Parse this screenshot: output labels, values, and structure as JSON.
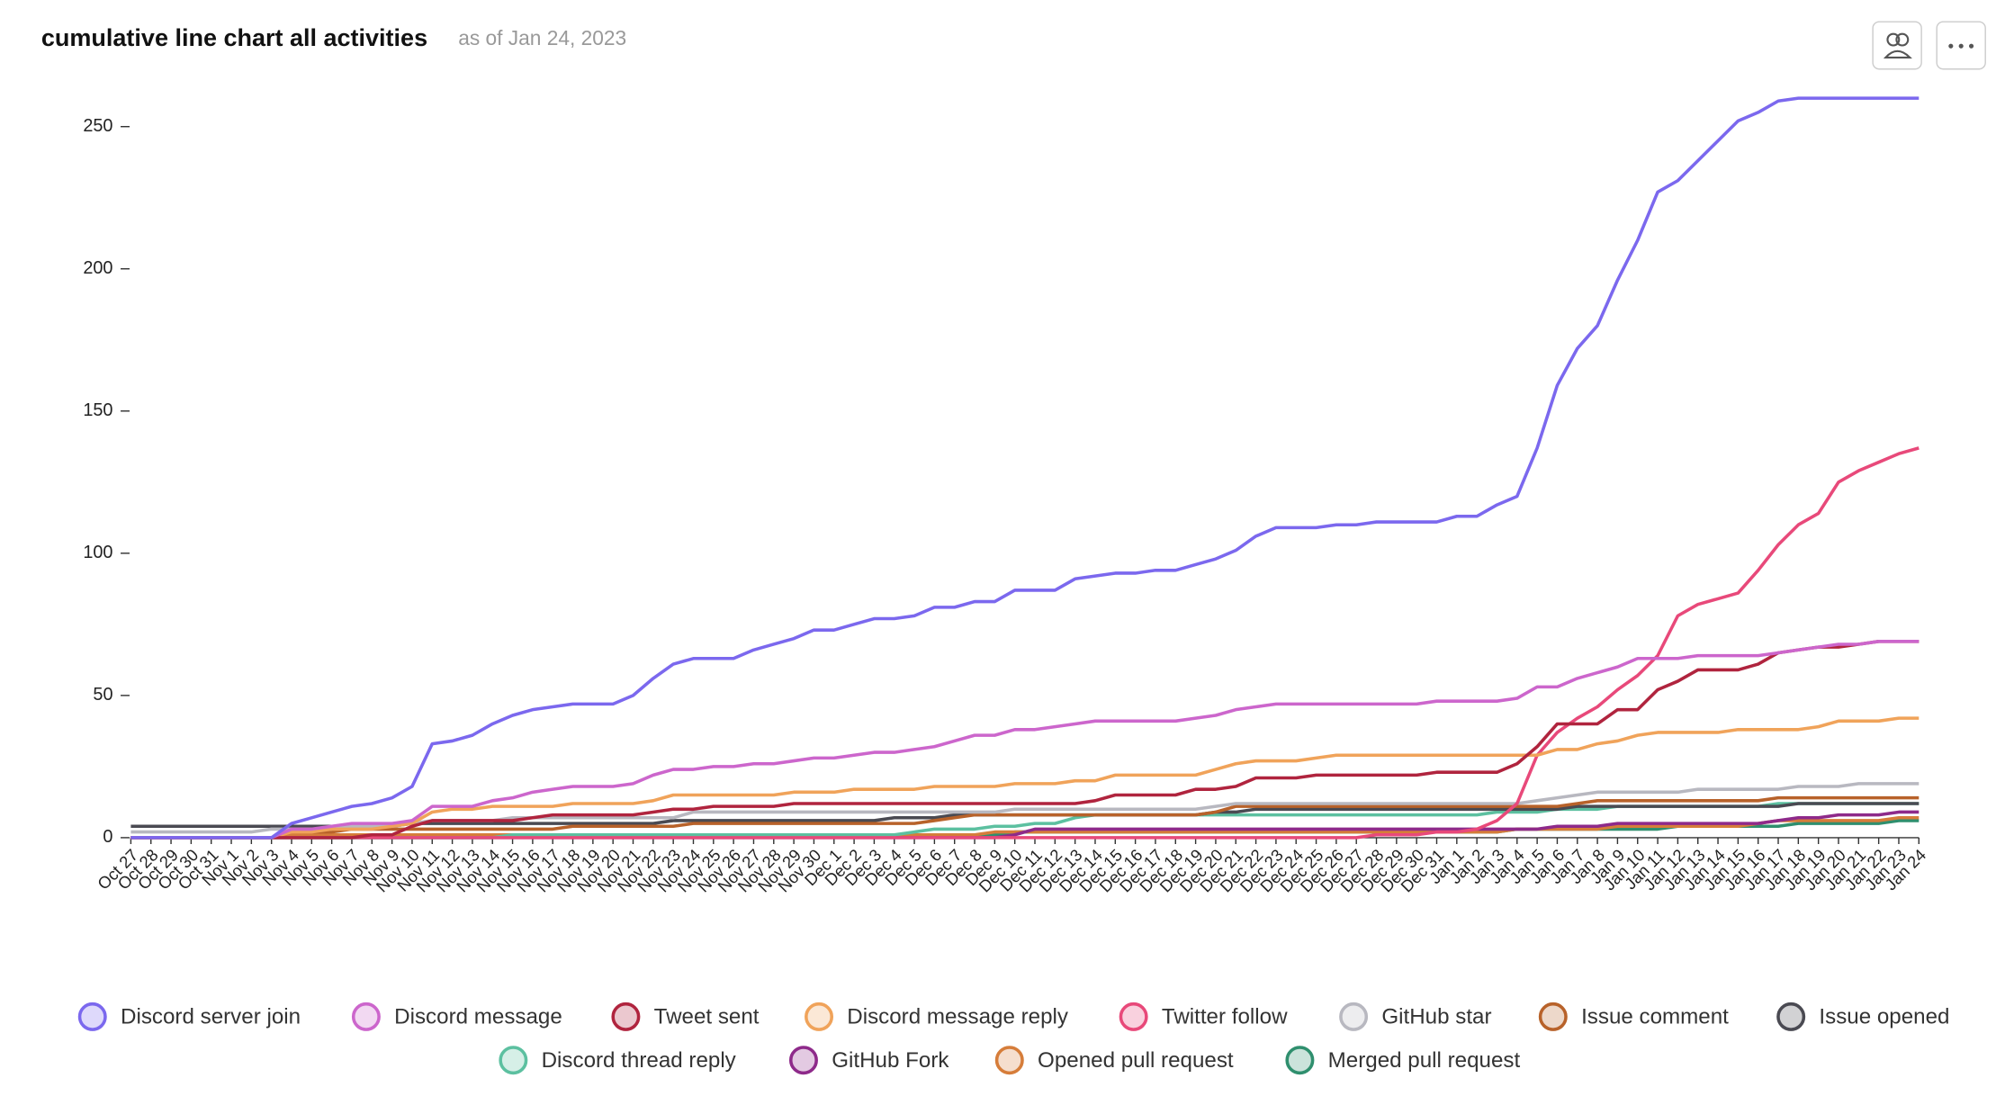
{
  "chart_data": {
    "type": "line",
    "title": "cumulative line chart all activities",
    "subtitle": "as of Jan 24, 2023",
    "categories": [
      "Oct 27",
      "Oct 28",
      "Oct 29",
      "Oct 30",
      "Oct 31",
      "Nov 1",
      "Nov 2",
      "Nov 3",
      "Nov 4",
      "Nov 5",
      "Nov 6",
      "Nov 7",
      "Nov 8",
      "Nov 9",
      "Nov 10",
      "Nov 11",
      "Nov 12",
      "Nov 13",
      "Nov 14",
      "Nov 15",
      "Nov 16",
      "Nov 17",
      "Nov 18",
      "Nov 19",
      "Nov 20",
      "Nov 21",
      "Nov 22",
      "Nov 23",
      "Nov 24",
      "Nov 25",
      "Nov 26",
      "Nov 27",
      "Nov 28",
      "Nov 29",
      "Nov 30",
      "Dec 1",
      "Dec 2",
      "Dec 3",
      "Dec 4",
      "Dec 5",
      "Dec 6",
      "Dec 7",
      "Dec 8",
      "Dec 9",
      "Dec 10",
      "Dec 11",
      "Dec 12",
      "Dec 13",
      "Dec 14",
      "Dec 15",
      "Dec 16",
      "Dec 17",
      "Dec 18",
      "Dec 19",
      "Dec 20",
      "Dec 21",
      "Dec 22",
      "Dec 23",
      "Dec 24",
      "Dec 25",
      "Dec 26",
      "Dec 27",
      "Dec 28",
      "Dec 29",
      "Dec 30",
      "Dec 31",
      "Jan 1",
      "Jan 2",
      "Jan 3",
      "Jan 4",
      "Jan 5",
      "Jan 6",
      "Jan 7",
      "Jan 8",
      "Jan 9",
      "Jan 10",
      "Jan 11",
      "Jan 12",
      "Jan 13",
      "Jan 14",
      "Jan 15",
      "Jan 16",
      "Jan 17",
      "Jan 18",
      "Jan 19",
      "Jan 20",
      "Jan 21",
      "Jan 22",
      "Jan 23",
      "Jan 24"
    ],
    "series": [
      {
        "name": "Discord server join",
        "color": "#7b68ee",
        "values": [
          0,
          0,
          0,
          0,
          0,
          0,
          0,
          0,
          5,
          7,
          9,
          11,
          12,
          14,
          18,
          33,
          34,
          36,
          40,
          43,
          45,
          46,
          47,
          47,
          47,
          50,
          56,
          61,
          63,
          63,
          63,
          66,
          68,
          70,
          73,
          73,
          75,
          77,
          77,
          78,
          81,
          81,
          83,
          83,
          87,
          87,
          87,
          91,
          92,
          93,
          93,
          94,
          94,
          96,
          98,
          101,
          106,
          109,
          109,
          109,
          110,
          110,
          111,
          111,
          111,
          111,
          113,
          113,
          117,
          120,
          137,
          159,
          172,
          180,
          196,
          210,
          227,
          231,
          238,
          245,
          252,
          255,
          259,
          260,
          260,
          260,
          260,
          260,
          260,
          260
        ]
      },
      {
        "name": "Discord message",
        "color": "#cc66cc",
        "values": [
          0,
          0,
          0,
          0,
          0,
          0,
          0,
          0,
          3,
          3,
          4,
          5,
          5,
          5,
          6,
          11,
          11,
          11,
          13,
          14,
          16,
          17,
          18,
          18,
          18,
          19,
          22,
          24,
          24,
          25,
          25,
          26,
          26,
          27,
          28,
          28,
          29,
          30,
          30,
          31,
          32,
          34,
          36,
          36,
          38,
          38,
          39,
          40,
          41,
          41,
          41,
          41,
          41,
          42,
          43,
          45,
          46,
          47,
          47,
          47,
          47,
          47,
          47,
          47,
          47,
          48,
          48,
          48,
          48,
          49,
          53,
          53,
          56,
          58,
          60,
          63,
          63,
          63,
          64,
          64,
          64,
          64,
          65,
          66,
          67,
          68,
          68,
          69,
          69,
          69
        ]
      },
      {
        "name": "Tweet sent",
        "color": "#b0243e",
        "values": [
          0,
          0,
          0,
          0,
          0,
          0,
          0,
          0,
          0,
          0,
          0,
          0,
          1,
          1,
          4,
          6,
          6,
          6,
          6,
          6,
          7,
          8,
          8,
          8,
          8,
          8,
          9,
          10,
          10,
          11,
          11,
          11,
          11,
          12,
          12,
          12,
          12,
          12,
          12,
          12,
          12,
          12,
          12,
          12,
          12,
          12,
          12,
          12,
          13,
          15,
          15,
          15,
          15,
          17,
          17,
          18,
          21,
          21,
          21,
          22,
          22,
          22,
          22,
          22,
          22,
          23,
          23,
          23,
          23,
          26,
          32,
          40,
          40,
          40,
          45,
          45,
          52,
          55,
          59,
          59,
          59,
          61,
          65,
          66,
          67,
          67,
          68,
          69,
          69,
          69
        ]
      },
      {
        "name": "Discord message reply",
        "color": "#f0a35a",
        "values": [
          0,
          0,
          0,
          0,
          0,
          0,
          0,
          0,
          2,
          2,
          3,
          3,
          3,
          4,
          5,
          9,
          10,
          10,
          11,
          11,
          11,
          11,
          12,
          12,
          12,
          12,
          13,
          15,
          15,
          15,
          15,
          15,
          15,
          16,
          16,
          16,
          17,
          17,
          17,
          17,
          18,
          18,
          18,
          18,
          19,
          19,
          19,
          20,
          20,
          22,
          22,
          22,
          22,
          22,
          24,
          26,
          27,
          27,
          27,
          28,
          29,
          29,
          29,
          29,
          29,
          29,
          29,
          29,
          29,
          29,
          29,
          31,
          31,
          33,
          34,
          36,
          37,
          37,
          37,
          37,
          38,
          38,
          38,
          38,
          39,
          41,
          41,
          41,
          42,
          42
        ]
      },
      {
        "name": "Twitter follow",
        "color": "#e8497a",
        "values": [
          0,
          0,
          0,
          0,
          0,
          0,
          0,
          0,
          0,
          0,
          0,
          0,
          0,
          0,
          0,
          0,
          0,
          0,
          0,
          0,
          0,
          0,
          0,
          0,
          0,
          0,
          0,
          0,
          0,
          0,
          0,
          0,
          0,
          0,
          0,
          0,
          0,
          0,
          0,
          0,
          0,
          0,
          0,
          0,
          0,
          0,
          0,
          0,
          0,
          0,
          0,
          0,
          0,
          0,
          0,
          0,
          0,
          0,
          0,
          0,
          0,
          0,
          1,
          1,
          1,
          2,
          2,
          3,
          6,
          12,
          29,
          37,
          42,
          46,
          52,
          57,
          64,
          78,
          82,
          84,
          86,
          94,
          103,
          110,
          114,
          125,
          129,
          132,
          135,
          137
        ]
      },
      {
        "name": "GitHub star",
        "color": "#b8b8c0",
        "values": [
          2,
          2,
          2,
          2,
          2,
          2,
          2,
          3,
          3,
          3,
          3,
          4,
          4,
          4,
          5,
          6,
          6,
          6,
          6,
          7,
          7,
          7,
          7,
          7,
          7,
          7,
          7,
          7,
          9,
          9,
          9,
          9,
          9,
          9,
          9,
          9,
          9,
          9,
          9,
          9,
          9,
          9,
          9,
          9,
          10,
          10,
          10,
          10,
          10,
          10,
          10,
          10,
          10,
          10,
          11,
          12,
          12,
          12,
          12,
          12,
          12,
          12,
          12,
          12,
          12,
          12,
          12,
          12,
          12,
          12,
          13,
          14,
          15,
          16,
          16,
          16,
          16,
          16,
          17,
          17,
          17,
          17,
          17,
          18,
          18,
          18,
          19,
          19,
          19,
          19
        ]
      },
      {
        "name": "Issue comment",
        "color": "#b8622a",
        "values": [
          0,
          0,
          0,
          0,
          0,
          0,
          0,
          0,
          2,
          2,
          2,
          3,
          3,
          3,
          3,
          3,
          3,
          3,
          3,
          3,
          3,
          3,
          4,
          4,
          4,
          4,
          4,
          4,
          5,
          5,
          5,
          5,
          5,
          5,
          5,
          5,
          5,
          5,
          5,
          5,
          6,
          7,
          8,
          8,
          8,
          8,
          8,
          8,
          8,
          8,
          8,
          8,
          8,
          8,
          9,
          11,
          11,
          11,
          11,
          11,
          11,
          11,
          11,
          11,
          11,
          11,
          11,
          11,
          11,
          11,
          11,
          11,
          12,
          13,
          13,
          13,
          13,
          13,
          13,
          13,
          13,
          13,
          14,
          14,
          14,
          14,
          14,
          14,
          14,
          14
        ]
      },
      {
        "name": "Issue opened",
        "color": "#4a4a52",
        "values": [
          4,
          4,
          4,
          4,
          4,
          4,
          4,
          4,
          4,
          4,
          4,
          4,
          4,
          4,
          5,
          5,
          5,
          5,
          5,
          5,
          5,
          5,
          5,
          5,
          5,
          5,
          5,
          6,
          6,
          6,
          6,
          6,
          6,
          6,
          6,
          6,
          6,
          6,
          7,
          7,
          7,
          8,
          8,
          8,
          8,
          8,
          8,
          8,
          8,
          8,
          8,
          8,
          8,
          8,
          9,
          9,
          10,
          10,
          10,
          10,
          10,
          10,
          10,
          10,
          10,
          10,
          10,
          10,
          10,
          10,
          10,
          10,
          11,
          11,
          11,
          11,
          11,
          11,
          11,
          11,
          11,
          11,
          11,
          12,
          12,
          12,
          12,
          12,
          12,
          12
        ]
      },
      {
        "name": "Discord thread reply",
        "color": "#5cc0a0",
        "values": [
          0,
          0,
          0,
          0,
          0,
          0,
          0,
          0,
          0,
          0,
          0,
          0,
          0,
          0,
          0,
          0,
          0,
          0,
          0,
          1,
          1,
          1,
          1,
          1,
          1,
          1,
          1,
          1,
          1,
          1,
          1,
          1,
          1,
          1,
          1,
          1,
          1,
          1,
          1,
          2,
          3,
          3,
          3,
          4,
          4,
          5,
          5,
          7,
          8,
          8,
          8,
          8,
          8,
          8,
          8,
          8,
          8,
          8,
          8,
          8,
          8,
          8,
          8,
          8,
          8,
          8,
          8,
          8,
          9,
          9,
          9,
          10,
          10,
          10,
          11,
          11,
          11,
          11,
          11,
          11,
          11,
          11,
          12,
          12,
          12,
          12,
          12,
          12,
          12,
          12
        ]
      },
      {
        "name": "GitHub Fork",
        "color": "#8e2a8a",
        "values": [
          0,
          0,
          0,
          0,
          0,
          0,
          0,
          0,
          0,
          0,
          0,
          0,
          0,
          0,
          0,
          0,
          0,
          0,
          0,
          0,
          0,
          0,
          0,
          0,
          0,
          0,
          0,
          0,
          0,
          0,
          0,
          0,
          0,
          0,
          0,
          0,
          0,
          0,
          0,
          0,
          0,
          0,
          0,
          0,
          1,
          3,
          3,
          3,
          3,
          3,
          3,
          3,
          3,
          3,
          3,
          3,
          3,
          3,
          3,
          3,
          3,
          3,
          3,
          3,
          3,
          3,
          3,
          3,
          3,
          3,
          3,
          4,
          4,
          4,
          5,
          5,
          5,
          5,
          5,
          5,
          5,
          5,
          6,
          7,
          7,
          8,
          8,
          8,
          9,
          9
        ]
      },
      {
        "name": "Opened pull request",
        "color": "#d67d3a",
        "values": [
          0,
          0,
          0,
          0,
          0,
          0,
          0,
          0,
          1,
          1,
          1,
          1,
          1,
          1,
          1,
          1,
          1,
          1,
          1,
          1,
          1,
          1,
          1,
          1,
          1,
          1,
          1,
          1,
          1,
          1,
          1,
          1,
          1,
          1,
          1,
          1,
          1,
          1,
          1,
          1,
          1,
          1,
          1,
          2,
          2,
          2,
          2,
          2,
          2,
          2,
          2,
          2,
          2,
          2,
          2,
          2,
          2,
          2,
          2,
          2,
          2,
          2,
          2,
          2,
          2,
          2,
          2,
          2,
          2,
          3,
          3,
          3,
          3,
          3,
          4,
          4,
          4,
          4,
          4,
          4,
          4,
          5,
          6,
          6,
          6,
          6,
          6,
          6,
          7,
          7
        ]
      },
      {
        "name": "Merged pull request",
        "color": "#2f8f6e",
        "values": [
          0,
          0,
          0,
          0,
          0,
          0,
          0,
          0,
          0,
          0,
          0,
          0,
          0,
          0,
          0,
          0,
          0,
          0,
          0,
          1,
          1,
          1,
          1,
          1,
          1,
          1,
          1,
          1,
          1,
          1,
          1,
          1,
          1,
          1,
          1,
          1,
          1,
          1,
          1,
          1,
          1,
          1,
          1,
          1,
          2,
          2,
          2,
          2,
          2,
          2,
          2,
          2,
          2,
          2,
          2,
          2,
          2,
          2,
          2,
          2,
          2,
          2,
          2,
          2,
          2,
          2,
          2,
          2,
          2,
          3,
          3,
          3,
          3,
          3,
          3,
          3,
          3,
          4,
          4,
          4,
          4,
          4,
          4,
          5,
          5,
          5,
          5,
          5,
          6,
          6
        ]
      }
    ],
    "ylim": [
      0,
      265
    ],
    "yticks": [
      0,
      50,
      100,
      150,
      200,
      250
    ],
    "legend": "bottom"
  }
}
